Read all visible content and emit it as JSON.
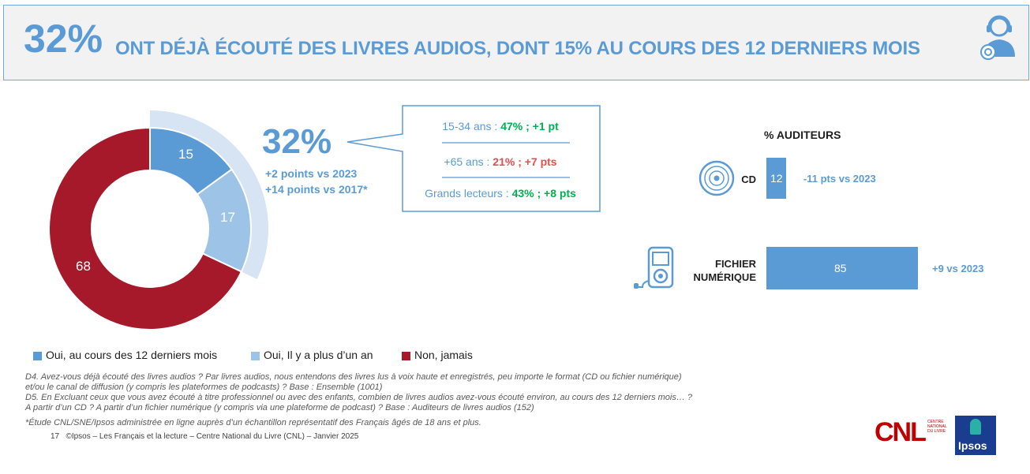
{
  "header": {
    "big_pct": "32%",
    "title_rest": "ONT DÉJÀ ÉCOUTÉ DES LIVRES AUDIOS, DONT 15% AU COURS DES 12 DERNIERS MOIS",
    "icon": "headset-person-icon"
  },
  "summary": {
    "pct": "32%",
    "delta_2023": "+2 points vs 2023",
    "delta_2017": "+14 points vs 2017*"
  },
  "callout": {
    "line1_prefix": "15-34 ans : ",
    "line1_value": "47% ; +1 pt",
    "line2_prefix": "+65 ans : ",
    "line2_value": "21% ; +7 pts",
    "line3_prefix": "Grands lecteurs : ",
    "line3_value": "43% ; +8 pts"
  },
  "colors": {
    "blue": "#5b9bd5",
    "light_blue": "#9dc3e6",
    "red": "#a5192b",
    "pale_blue": "#d6e4f3",
    "green": "#00b050"
  },
  "chart_data": [
    {
      "type": "pie",
      "title": "",
      "categories": [
        "Oui, au cours des 12 derniers mois",
        "Oui, Il y a plus d'un an",
        "Non, jamais"
      ],
      "values": [
        15,
        17,
        68
      ],
      "legend_position": "bottom"
    },
    {
      "type": "bar",
      "title": "% AUDITEURS",
      "categories": [
        "CD",
        "FICHIER NUMÉRIQUE"
      ],
      "values": [
        12,
        85
      ],
      "deltas": [
        "-11 pts vs 2023",
        "+9 vs 2023"
      ]
    }
  ],
  "donut_labels": [
    "15",
    "17",
    "68"
  ],
  "legend": [
    {
      "label": "Oui, au cours des 12 derniers mois",
      "color": "#5b9bd5"
    },
    {
      "label": "Oui, Il y a plus d’un an",
      "color": "#9dc3e6"
    },
    {
      "label": "Non, jamais",
      "color": "#a5192b"
    }
  ],
  "auditeurs": {
    "title": "% AUDITEURS",
    "cd_label": "CD",
    "cd_value": "12",
    "cd_delta": "-11 pts vs 2023",
    "cd_icon": "cd-disc-icon",
    "file_label_1": "FICHIER",
    "file_label_2": "NUMÉRIQUE",
    "file_value": "85",
    "file_delta": "+9 vs 2023",
    "file_icon": "mp3-player-icon"
  },
  "notes": {
    "d4_line1": "D4. Avez-vous déjà écouté des livres audios ? Par livres audios, nous entendons des livres lus à voix haute et enregistrés, peu importe le format (CD ou fichier numérique)",
    "d4_line2": "et/ou le canal de diffusion (y compris les plateformes de podcasts) ? Base : Ensemble (1001)",
    "d5_line1": "D5. En Excluant ceux que vous avez écouté à titre professionnel ou avec des enfants, combien de livres audios avez-vous écouté environ, au cours des 12 derniers mois… ?",
    "d5_line2": "A partir d’un CD ? A partir d’un fichier numérique (y compris via une plateforme de podcast) ? Base : Auditeurs de livres audios (152)",
    "study": "*Étude CNL/SNE/Ipsos administrée en ligne auprès d’un échantillon représentatif des Français âgés de 18 ans et plus.",
    "page": "17",
    "copyright": "©Ipsos – Les Français et la lecture – Centre National du Livre (CNL) – Janvier 2025"
  },
  "logos": {
    "cnl": "CNL",
    "cnl_sub_1": "CENTRE",
    "cnl_sub_2": "NATIONAL",
    "cnl_sub_3": "DU LIVRE",
    "ipsos": "Ipsos"
  }
}
